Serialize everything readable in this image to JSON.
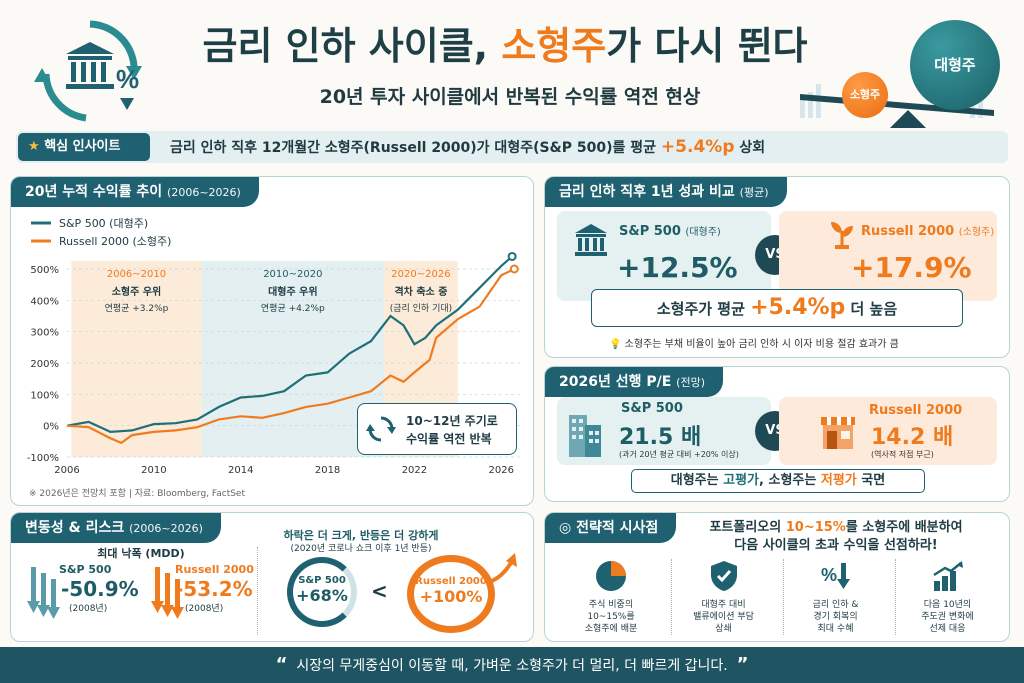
{
  "header": {
    "title_part1": "금리 인하 사이클, ",
    "title_highlight": "소형주",
    "title_part2": "가 다시 뛴다",
    "subtitle": "20년 투자 사이클에서 반복된 수익률 역전 현상",
    "big_ball_label": "대형주",
    "small_ball_label": "소형주"
  },
  "insight": {
    "label": "핵심 인사이트",
    "text": "금리 인하 직후 12개월간 소형주(Russell 2000)가 대형주(S&P 500)를 평균 ",
    "value": "+5.4%p",
    "text_end": " 상회"
  },
  "chart_panel": {
    "title": "20년 누적 수익률 추이",
    "title_range": "(2006~2026)",
    "footnote": "※ 2026년은 전망치 포함 | 자료: Bloomberg, FactSet",
    "cycle_box_line1": "10~12년 주기로",
    "cycle_box_line2": "수익률 역전 반복"
  },
  "chart_data": {
    "type": "line",
    "colors": {
      "sp500": "#1f6f78",
      "russell": "#ef7b1f"
    },
    "legend": [
      "S&P 500 (대형주)",
      "Russell 2000 (소형주)"
    ],
    "y_ticks": [
      "500%",
      "400%",
      "300%",
      "200%",
      "100%",
      "0%",
      "-100%"
    ],
    "x_ticks": [
      "2006",
      "2010",
      "2014",
      "2018",
      "2022",
      "2026"
    ],
    "ylim": [
      -100,
      500
    ],
    "xlim": [
      2006,
      2027
    ],
    "series": [
      {
        "name": "S&P 500 (대형주)",
        "points": [
          [
            2006,
            0
          ],
          [
            2007,
            12
          ],
          [
            2008,
            -20
          ],
          [
            2009,
            -15
          ],
          [
            2010,
            5
          ],
          [
            2011,
            8
          ],
          [
            2012,
            20
          ],
          [
            2013,
            60
          ],
          [
            2014,
            90
          ],
          [
            2015,
            95
          ],
          [
            2016,
            110
          ],
          [
            2017,
            160
          ],
          [
            2018,
            170
          ],
          [
            2019,
            230
          ],
          [
            2020,
            270
          ],
          [
            2020.9,
            350
          ],
          [
            2021.5,
            320
          ],
          [
            2022,
            260
          ],
          [
            2022.5,
            280
          ],
          [
            2023,
            320
          ],
          [
            2024,
            370
          ],
          [
            2025,
            440
          ],
          [
            2026,
            510
          ],
          [
            2026.5,
            540
          ]
        ]
      },
      {
        "name": "Russell 2000 (소형주)",
        "points": [
          [
            2006,
            0
          ],
          [
            2007,
            -5
          ],
          [
            2008,
            -40
          ],
          [
            2008.5,
            -55
          ],
          [
            2009,
            -30
          ],
          [
            2010,
            -20
          ],
          [
            2011,
            -15
          ],
          [
            2012,
            -5
          ],
          [
            2013,
            20
          ],
          [
            2014,
            30
          ],
          [
            2015,
            25
          ],
          [
            2016,
            40
          ],
          [
            2017,
            60
          ],
          [
            2018,
            70
          ],
          [
            2019,
            90
          ],
          [
            2020,
            110
          ],
          [
            2020.9,
            160
          ],
          [
            2021.5,
            140
          ],
          [
            2022,
            170
          ],
          [
            2022.7,
            210
          ],
          [
            2023,
            280
          ],
          [
            2024,
            340
          ],
          [
            2025,
            380
          ],
          [
            2026,
            480
          ],
          [
            2026.6,
            500
          ]
        ]
      }
    ],
    "regions": [
      {
        "range": "2006~2010",
        "title": "소형주 우위",
        "sub": "연평균 +3.2%p",
        "x0": 2006.2,
        "x1": 2012.2
      },
      {
        "range": "2010~2020",
        "title": "대형주 우위",
        "sub": "연평균 +4.2%p",
        "x0": 2012.2,
        "x1": 2020.6
      },
      {
        "range": "2020~2026",
        "title": "격차 축소 중",
        "sub": "(금리 인하 기대)",
        "x0": 2020.6,
        "x1": 2024
      }
    ]
  },
  "comparison": {
    "title": "금리 인하 직후 1년 성과 비교",
    "title_sub": "(평균)",
    "sp_label": "S&P 500",
    "sp_sub": "(대형주)",
    "sp_value": "+12.5%",
    "vs": "VS",
    "rs_label": "Russell 2000",
    "rs_sub": "(소형주)",
    "rs_value": "+17.9%",
    "diff_text1": "소형주가 평균 ",
    "diff_value": "+5.4%p",
    "diff_text2": " 더 높음",
    "note": "소형주는 부채 비율이 높아 금리 인하 시 이자 비용 절감 효과가 큼"
  },
  "pe": {
    "title": "2026년 선행 P/E",
    "title_sub": "(전망)",
    "sp_label": "S&P 500",
    "sp_value": "21.5 배",
    "sp_note": "(과거 20년 평균 대비 +20% 이상)",
    "vs": "VS",
    "rs_label": "Russell 2000",
    "rs_value": "14.2 배",
    "rs_note": "(역사적 저점 부근)",
    "bottom1": "대형주는 ",
    "bottom_hi1": "고평가",
    "bottom2": ", 소형주는 ",
    "bottom_hi2": "저평가",
    "bottom3": " 국면"
  },
  "risk": {
    "title": "변동성 & 리스크",
    "title_range": "(2006~2026)",
    "mdd_title": "최대 낙폭 (MDD)",
    "sp_label": "S&P 500",
    "sp_value": "-50.9%",
    "sp_year": "(2008년)",
    "rs_label": "Russell 2000",
    "rs_value": "-53.2%",
    "rs_year": "(2008년)",
    "rebound_title": "하락은 더 크게, 반등은 더 강하게",
    "rebound_sub": "(2020년 코로나 쇼크 이후 1년 반등)",
    "sp_reb_label": "S&P 500",
    "sp_reb_value": "+68%",
    "lt": "<",
    "rs_reb_label": "Russell 2000",
    "rs_reb_value": "+100%"
  },
  "strategy": {
    "title": "전략적 시사점",
    "head1": "포트폴리오의 ",
    "head_hi": "10~15%",
    "head2": "를 소형주에 배분하여",
    "head3": "다음 사이클의 초과 수익을 선점하라!",
    "items": [
      {
        "icon": "pie-chart-icon",
        "text": "주식 비중의\n10~15%를\n소형주에 배분"
      },
      {
        "icon": "shield-check-icon",
        "text": "대형주 대비\n밸류에이션 부담\n상쇄"
      },
      {
        "icon": "rate-cut-icon",
        "text": "금리 인하 &\n경기 회복의\n최대 수혜"
      },
      {
        "icon": "growth-bars-icon",
        "text": "다음 10년의\n주도권 변화에\n선제 대응"
      }
    ]
  },
  "quote": {
    "open": "“",
    "text": "시장의 무게중심이 이동할 때, 가벼운 소형주가 더 멀리, 더 빠르게 갑니다.",
    "close": "”"
  }
}
